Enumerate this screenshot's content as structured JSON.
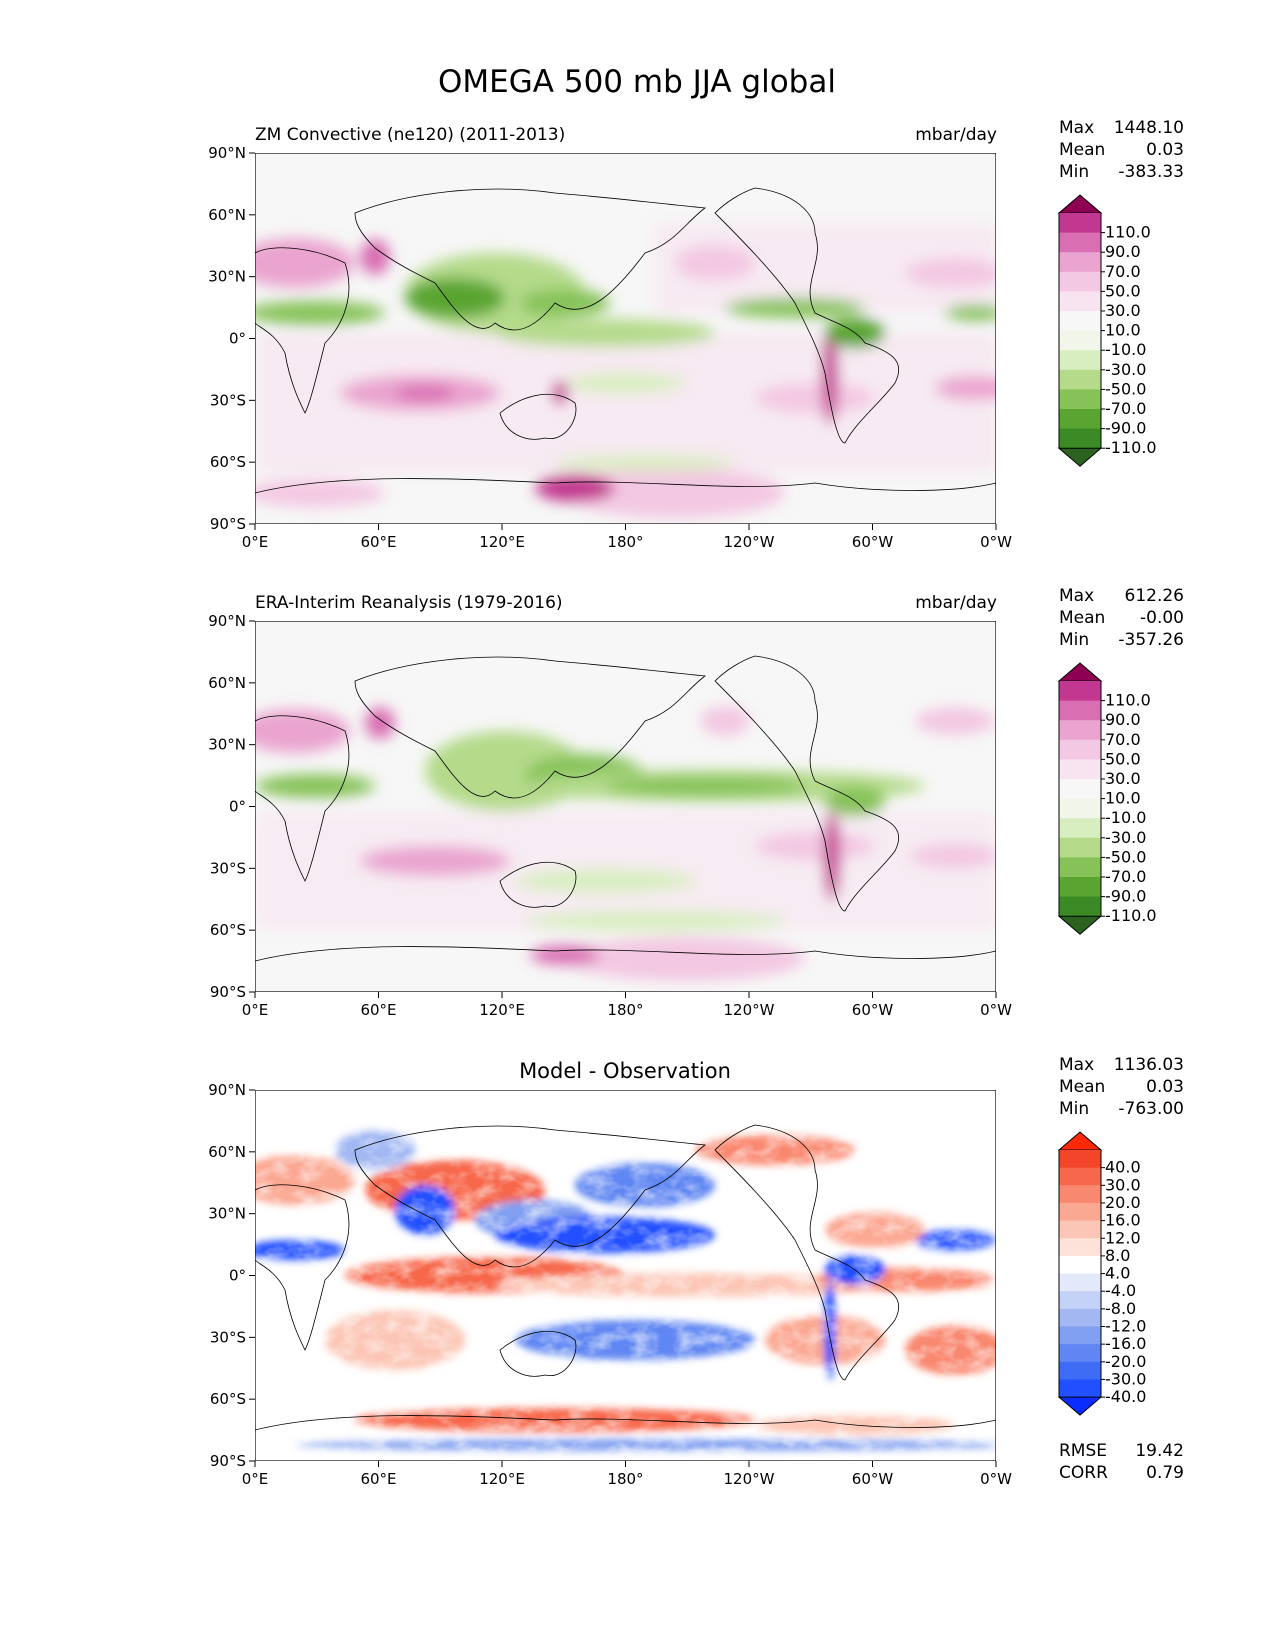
{
  "figure": {
    "title": "OMEGA 500 mb JJA global"
  },
  "colors": {
    "omega_scale": [
      "#2b6220",
      "#3b8a26",
      "#5aa532",
      "#86c258",
      "#b4da8a",
      "#d8eec0",
      "#f1f5ea",
      "#f7f7f7",
      "#f7e4f0",
      "#f3c8e2",
      "#eaa4cf",
      "#d96eb2",
      "#c2378f",
      "#8e0152"
    ],
    "diff_scale": [
      "#0a2cff",
      "#2050ff",
      "#3f6cf5",
      "#5f86f2",
      "#809ff0",
      "#a3b8f3",
      "#c5d2f7",
      "#e3e9fa",
      "#ffffff",
      "#fde2da",
      "#fcc6b6",
      "#fba893",
      "#f98870",
      "#f7674c",
      "#f2452a",
      "#ff2a05"
    ]
  },
  "chart_data": [
    {
      "type": "heatmap",
      "id": "model",
      "left_title": "ZM Convective (ne120) (2011-2013)",
      "right_title": "mbar/day",
      "stats": {
        "max_label": "Max",
        "max": "1448.10",
        "mean_label": "Mean",
        "mean": "0.03",
        "min_label": "Min",
        "min": "-383.33"
      },
      "colorbar_ticks": [
        "110.0",
        "90.0",
        "70.0",
        "50.0",
        "30.0",
        "10.0",
        "-10.0",
        "-30.0",
        "-50.0",
        "-70.0",
        "-90.0",
        "-110.0"
      ],
      "xticks": [
        "0°E",
        "60°E",
        "120°E",
        "180°",
        "120°W",
        "60°W",
        "0°W"
      ],
      "yticks": [
        "90°N",
        "60°N",
        "30°N",
        "0°",
        "30°S",
        "60°S",
        "90°S"
      ],
      "xlim": [
        0,
        360
      ],
      "ylim": [
        -90,
        90
      ]
    },
    {
      "type": "heatmap",
      "id": "obs",
      "left_title": "ERA-Interim Reanalysis (1979-2016)",
      "right_title": "mbar/day",
      "stats": {
        "max_label": "Max",
        "max": "612.26",
        "mean_label": "Mean",
        "mean": "-0.00",
        "min_label": "Min",
        "min": "-357.26"
      },
      "colorbar_ticks": [
        "110.0",
        "90.0",
        "70.0",
        "50.0",
        "30.0",
        "10.0",
        "-10.0",
        "-30.0",
        "-50.0",
        "-70.0",
        "-90.0",
        "-110.0"
      ],
      "xticks": [
        "0°E",
        "60°E",
        "120°E",
        "180°",
        "120°W",
        "60°W",
        "0°W"
      ],
      "yticks": [
        "90°N",
        "60°N",
        "30°N",
        "0°",
        "30°S",
        "60°S",
        "90°S"
      ],
      "xlim": [
        0,
        360
      ],
      "ylim": [
        -90,
        90
      ]
    },
    {
      "type": "heatmap",
      "id": "diff",
      "center_title": "Model - Observation",
      "stats": {
        "max_label": "Max",
        "max": "1136.03",
        "mean_label": "Mean",
        "mean": "0.03",
        "min_label": "Min",
        "min": "-763.00"
      },
      "colorbar_ticks": [
        "40.0",
        "30.0",
        "20.0",
        "16.0",
        "12.0",
        "8.0",
        "4.0",
        "-4.0",
        "-8.0",
        "-12.0",
        "-16.0",
        "-20.0",
        "-30.0",
        "-40.0"
      ],
      "xticks": [
        "0°E",
        "60°E",
        "120°E",
        "180°",
        "120°W",
        "60°W",
        "0°W"
      ],
      "yticks": [
        "90°N",
        "60°N",
        "30°N",
        "0°",
        "30°S",
        "60°S",
        "90°S"
      ],
      "xlim": [
        0,
        360
      ],
      "ylim": [
        -90,
        90
      ],
      "metrics": {
        "rmse_label": "RMSE",
        "rmse": "19.42",
        "corr_label": "CORR",
        "corr": "0.79"
      }
    }
  ]
}
